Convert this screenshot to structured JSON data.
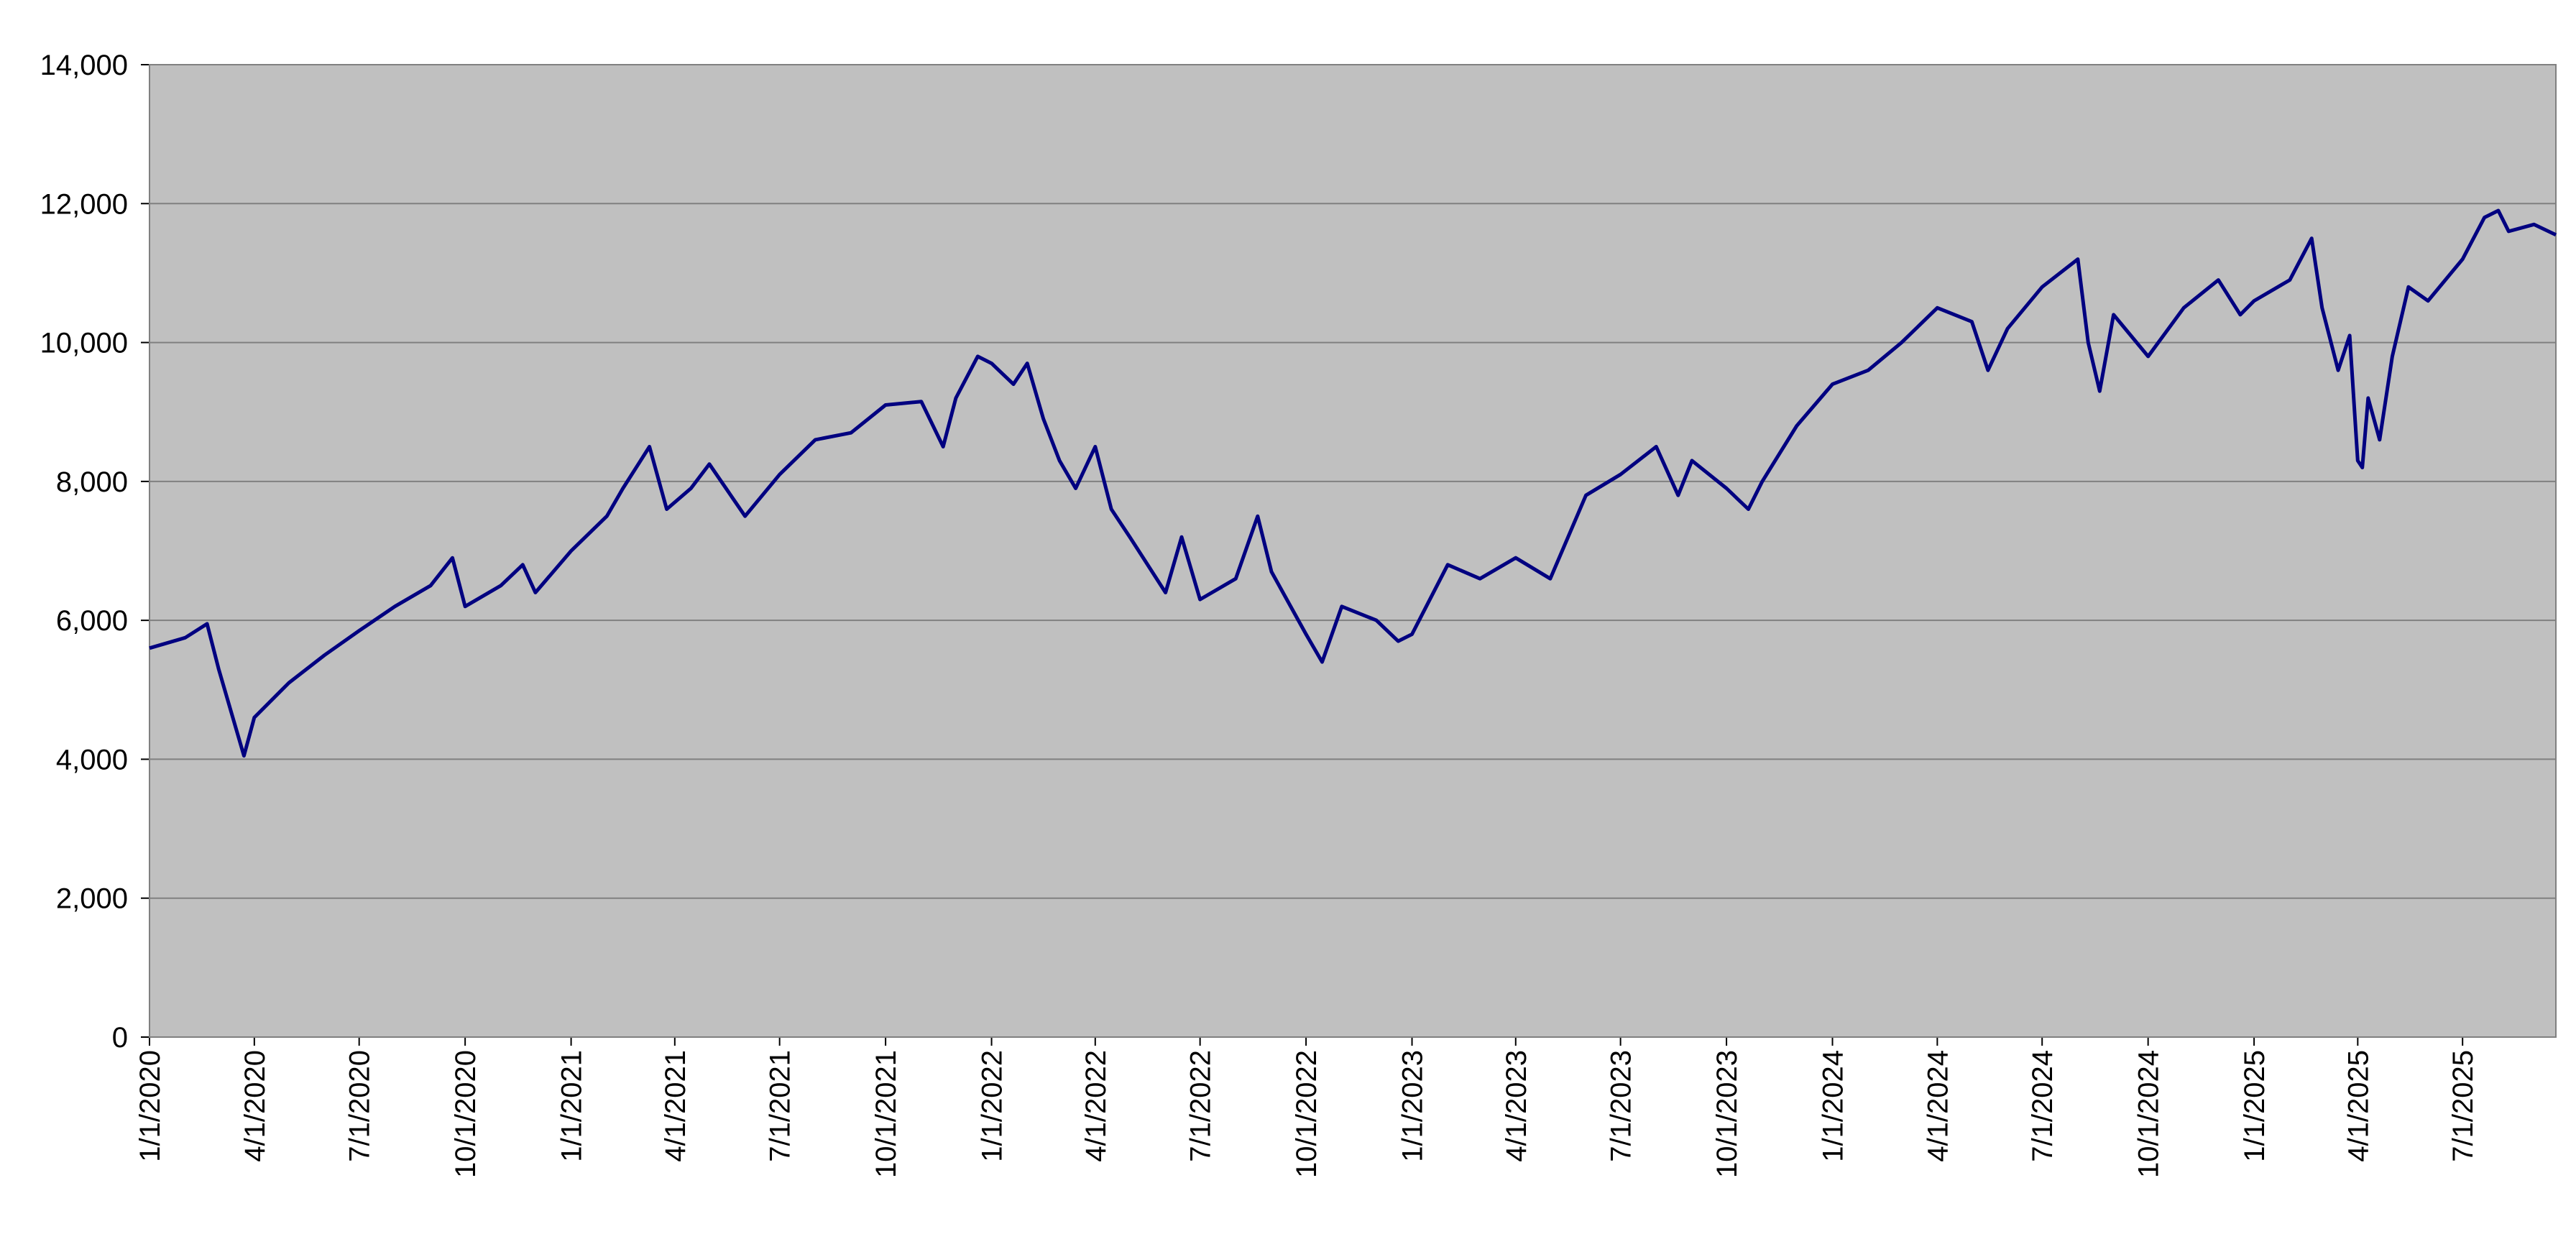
{
  "chart_data": {
    "type": "line",
    "x": [
      "1/1/2020",
      "2/1/2020",
      "2/20/2020",
      "3/1/2020",
      "3/23/2020",
      "4/1/2020",
      "5/1/2020",
      "6/1/2020",
      "7/1/2020",
      "8/1/2020",
      "9/1/2020",
      "9/20/2020",
      "10/1/2020",
      "11/1/2020",
      "11/20/2020",
      "12/1/2020",
      "1/1/2021",
      "2/1/2021",
      "2/15/2021",
      "3/10/2021",
      "3/25/2021",
      "4/15/2021",
      "5/1/2021",
      "6/1/2021",
      "7/1/2021",
      "8/1/2021",
      "9/1/2021",
      "10/1/2021",
      "11/1/2021",
      "11/20/2021",
      "12/1/2021",
      "12/20/2021",
      "1/1/2022",
      "1/20/2022",
      "2/1/2022",
      "2/15/2022",
      "3/1/2022",
      "3/15/2022",
      "4/1/2022",
      "4/15/2022",
      "5/1/2022",
      "6/1/2022",
      "6/15/2022",
      "7/1/2022",
      "8/1/2022",
      "8/20/2022",
      "9/1/2022",
      "10/1/2022",
      "10/15/2022",
      "11/1/2022",
      "12/1/2022",
      "12/20/2022",
      "1/1/2023",
      "2/1/2023",
      "3/1/2023",
      "4/1/2023",
      "5/1/2023",
      "6/1/2023",
      "7/1/2023",
      "8/1/2023",
      "8/20/2023",
      "9/1/2023",
      "10/1/2023",
      "10/20/2023",
      "11/1/2023",
      "12/1/2023",
      "1/1/2024",
      "2/1/2024",
      "3/1/2024",
      "4/1/2024",
      "5/1/2024",
      "5/15/2024",
      "6/1/2024",
      "7/1/2024",
      "8/1/2024",
      "8/10/2024",
      "8/20/2024",
      "9/1/2024",
      "10/1/2024",
      "11/1/2024",
      "12/1/2024",
      "12/20/2024",
      "1/1/2025",
      "2/1/2025",
      "2/20/2025",
      "3/1/2025",
      "3/15/2025",
      "3/25/2025",
      "4/1/2025",
      "4/5/2025",
      "4/10/2025",
      "4/20/2025",
      "5/1/2025",
      "5/15/2025",
      "6/1/2025",
      "7/1/2025",
      "7/20/2025",
      "8/1/2025",
      "8/10/2025",
      "9/1/2025",
      "9/20/2025"
    ],
    "series": [
      {
        "color": "#000080",
        "values": [
          5600,
          5750,
          5950,
          5300,
          4050,
          4600,
          5100,
          5500,
          5850,
          6200,
          6500,
          6900,
          6200,
          6500,
          6800,
          6400,
          7000,
          7500,
          7900,
          8500,
          7600,
          7900,
          8250,
          7500,
          8100,
          8600,
          8700,
          9100,
          9150,
          8500,
          9200,
          9800,
          9700,
          9400,
          9700,
          8900,
          8300,
          7900,
          8500,
          7600,
          7200,
          6400,
          7200,
          6300,
          6600,
          7500,
          6700,
          5800,
          5400,
          6200,
          6000,
          5700,
          5800,
          6800,
          6600,
          6900,
          6600,
          7800,
          8100,
          8500,
          7800,
          8300,
          7900,
          7600,
          8000,
          8800,
          9400,
          9600,
          10000,
          10500,
          10300,
          9600,
          10200,
          10800,
          11200,
          10000,
          9300,
          10400,
          9800,
          10500,
          10900,
          10400,
          10600,
          10900,
          11500,
          10500,
          9600,
          10100,
          8300,
          8200,
          9200,
          8600,
          9800,
          10800,
          10600,
          11200,
          11800,
          11900,
          11600,
          11700,
          11550
        ]
      }
    ],
    "xlim": [
      "1/1/2020",
      "9/20/2025"
    ],
    "xticks": [
      "1/1/2020",
      "4/1/2020",
      "7/1/2020",
      "10/1/2020",
      "1/1/2021",
      "4/1/2021",
      "7/1/2021",
      "10/1/2021",
      "1/1/2022",
      "4/1/2022",
      "7/1/2022",
      "10/1/2022",
      "1/1/2023",
      "4/1/2023",
      "7/1/2023",
      "10/1/2023",
      "1/1/2024",
      "4/1/2024",
      "7/1/2024",
      "10/1/2024",
      "1/1/2025",
      "4/1/2025",
      "7/1/2025"
    ],
    "ylim": [
      0,
      14000
    ],
    "yticks": [
      0,
      {
        "value": 2000,
        "label": "2,000"
      },
      {
        "value": 4000,
        "label": "4,000"
      },
      {
        "value": 6000,
        "label": "6,000"
      },
      {
        "value": 8000,
        "label": "8,000"
      },
      {
        "value": 10000,
        "label": "10,000"
      },
      {
        "value": 12000,
        "label": "12,000"
      },
      {
        "value": 14000,
        "label": "14,000"
      }
    ],
    "grid": true,
    "background": "#c0c0c0"
  }
}
